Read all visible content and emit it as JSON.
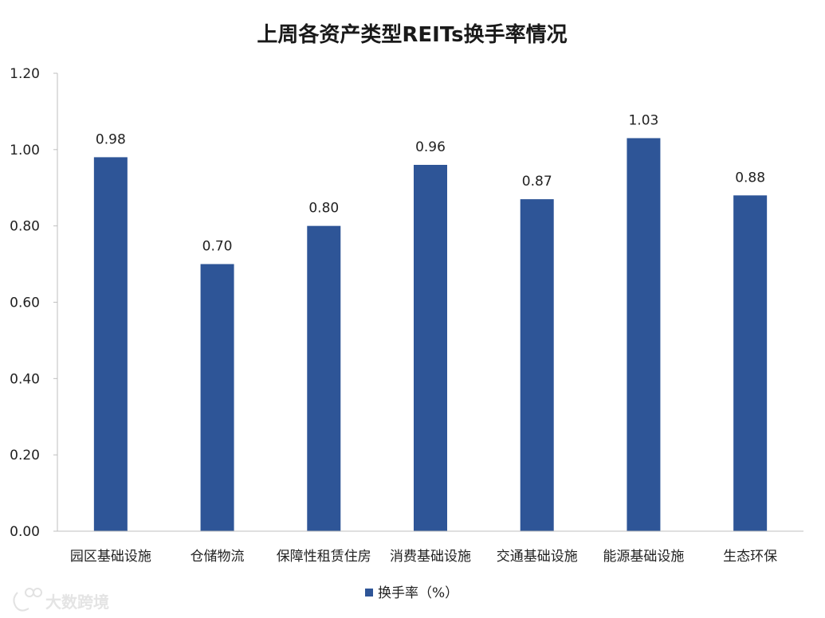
{
  "chart_data": {
    "type": "bar",
    "title": "上周各资产类型REITs换手率情况",
    "categories": [
      "园区基础设施",
      "仓储物流",
      "保障性租赁住房",
      "消费基础设施",
      "交通基础设施",
      "能源基础设施",
      "生态环保"
    ],
    "series": [
      {
        "name": "换手率（%）",
        "values": [
          0.98,
          0.7,
          0.8,
          0.96,
          0.87,
          1.03,
          0.88
        ],
        "data_labels": [
          "0.98",
          "0.70",
          "0.80",
          "0.96",
          "0.87",
          "1.03",
          "0.88"
        ],
        "color": "#2e5597"
      }
    ],
    "ylim": [
      0,
      1.2
    ],
    "yticks": [
      "0.00",
      "0.20",
      "0.40",
      "0.60",
      "0.80",
      "1.00",
      "1.20"
    ],
    "xlabel": "",
    "ylabel": "",
    "grid": false,
    "legend": "bottom-center"
  },
  "watermark": {
    "text": "大数跨境"
  }
}
